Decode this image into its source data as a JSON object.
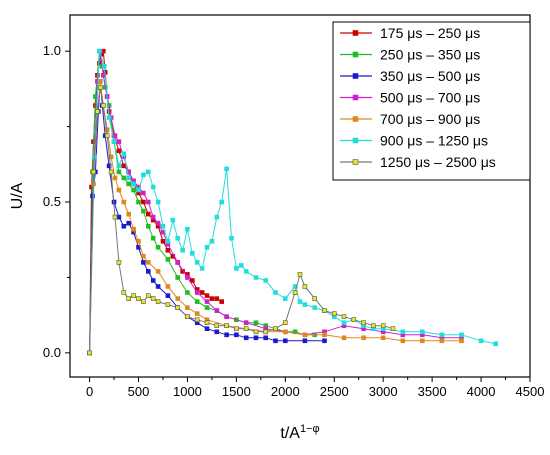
{
  "chart_data": {
    "type": "line",
    "title": "",
    "xlabel": "t/A",
    "xlabel_superscript": "1−φ",
    "ylabel": "U/A",
    "xlim": [
      -200,
      4500
    ],
    "ylim": [
      -0.08,
      1.12
    ],
    "xticks": [
      0,
      500,
      1000,
      1500,
      2000,
      2500,
      3000,
      3500,
      4000,
      4500
    ],
    "yticks": [
      0.0,
      0.5,
      1.0
    ],
    "ytick_labels": [
      "0.0",
      "0.5",
      "1.0"
    ],
    "grid": false,
    "legend_position": "top-right",
    "series": [
      {
        "name": "175 μs – 250 μs",
        "color": "#cc0000",
        "marker": "square",
        "points": [
          [
            0,
            0
          ],
          [
            20,
            0.55
          ],
          [
            40,
            0.7
          ],
          [
            60,
            0.82
          ],
          [
            80,
            0.92
          ],
          [
            100,
            0.96
          ],
          [
            120,
            0.99
          ],
          [
            140,
            1.0
          ],
          [
            160,
            0.93
          ],
          [
            180,
            0.85
          ],
          [
            200,
            0.8
          ],
          [
            250,
            0.72
          ],
          [
            300,
            0.67
          ],
          [
            350,
            0.62
          ],
          [
            400,
            0.6
          ],
          [
            450,
            0.56
          ],
          [
            500,
            0.53
          ],
          [
            550,
            0.5
          ],
          [
            600,
            0.46
          ],
          [
            650,
            0.44
          ],
          [
            700,
            0.42
          ],
          [
            750,
            0.37
          ],
          [
            800,
            0.34
          ],
          [
            850,
            0.32
          ],
          [
            900,
            0.3
          ],
          [
            950,
            0.27
          ],
          [
            1000,
            0.26
          ],
          [
            1050,
            0.24
          ],
          [
            1100,
            0.21
          ],
          [
            1150,
            0.2
          ],
          [
            1200,
            0.19
          ],
          [
            1250,
            0.18
          ],
          [
            1300,
            0.18
          ],
          [
            1350,
            0.17
          ]
        ]
      },
      {
        "name": "250 μs – 350 μs",
        "color": "#22bb22",
        "marker": "square",
        "points": [
          [
            0,
            0
          ],
          [
            30,
            0.6
          ],
          [
            60,
            0.85
          ],
          [
            100,
            1.0
          ],
          [
            130,
            0.95
          ],
          [
            160,
            0.88
          ],
          [
            200,
            0.82
          ],
          [
            250,
            0.7
          ],
          [
            300,
            0.6
          ],
          [
            350,
            0.58
          ],
          [
            400,
            0.56
          ],
          [
            450,
            0.54
          ],
          [
            500,
            0.5
          ],
          [
            550,
            0.47
          ],
          [
            600,
            0.42
          ],
          [
            650,
            0.38
          ],
          [
            700,
            0.35
          ],
          [
            800,
            0.31
          ],
          [
            900,
            0.25
          ],
          [
            1000,
            0.2
          ],
          [
            1100,
            0.17
          ],
          [
            1200,
            0.15
          ],
          [
            1300,
            0.14
          ],
          [
            1400,
            0.12
          ],
          [
            1500,
            0.11
          ],
          [
            1600,
            0.1
          ],
          [
            1700,
            0.1
          ],
          [
            1800,
            0.09
          ],
          [
            1900,
            0.08
          ],
          [
            2000,
            0.07
          ],
          [
            2100,
            0.07
          ],
          [
            2200,
            0.06
          ],
          [
            2300,
            0.06
          ]
        ]
      },
      {
        "name": "350 μs – 500 μs",
        "color": "#1a1acc",
        "marker": "square",
        "points": [
          [
            0,
            0
          ],
          [
            30,
            0.52
          ],
          [
            60,
            0.6
          ],
          [
            90,
            0.8
          ],
          [
            110,
            0.9
          ],
          [
            130,
            0.82
          ],
          [
            160,
            0.72
          ],
          [
            200,
            0.62
          ],
          [
            250,
            0.5
          ],
          [
            300,
            0.45
          ],
          [
            350,
            0.42
          ],
          [
            400,
            0.43
          ],
          [
            450,
            0.4
          ],
          [
            500,
            0.35
          ],
          [
            550,
            0.3
          ],
          [
            600,
            0.27
          ],
          [
            650,
            0.24
          ],
          [
            700,
            0.22
          ],
          [
            800,
            0.19
          ],
          [
            900,
            0.15
          ],
          [
            1000,
            0.12
          ],
          [
            1100,
            0.1
          ],
          [
            1200,
            0.08
          ],
          [
            1300,
            0.07
          ],
          [
            1400,
            0.06
          ],
          [
            1500,
            0.06
          ],
          [
            1600,
            0.05
          ],
          [
            1700,
            0.05
          ],
          [
            1800,
            0.05
          ],
          [
            1900,
            0.04
          ],
          [
            2000,
            0.04
          ],
          [
            2200,
            0.04
          ],
          [
            2400,
            0.04
          ]
        ]
      },
      {
        "name": "500 μs – 700 μs",
        "color": "#cc22cc",
        "marker": "square",
        "points": [
          [
            0,
            0
          ],
          [
            40,
            0.6
          ],
          [
            80,
            0.9
          ],
          [
            110,
            1.0
          ],
          [
            140,
            0.92
          ],
          [
            180,
            0.85
          ],
          [
            220,
            0.78
          ],
          [
            260,
            0.72
          ],
          [
            300,
            0.7
          ],
          [
            350,
            0.65
          ],
          [
            400,
            0.6
          ],
          [
            450,
            0.57
          ],
          [
            500,
            0.55
          ],
          [
            550,
            0.53
          ],
          [
            600,
            0.5
          ],
          [
            650,
            0.45
          ],
          [
            700,
            0.43
          ],
          [
            750,
            0.4
          ],
          [
            800,
            0.36
          ],
          [
            900,
            0.3
          ],
          [
            1000,
            0.25
          ],
          [
            1100,
            0.2
          ],
          [
            1200,
            0.17
          ],
          [
            1300,
            0.14
          ],
          [
            1400,
            0.12
          ],
          [
            1600,
            0.1
          ],
          [
            1800,
            0.08
          ],
          [
            2000,
            0.07
          ],
          [
            2200,
            0.06
          ],
          [
            2400,
            0.07
          ],
          [
            2600,
            0.09
          ],
          [
            2800,
            0.08
          ],
          [
            3000,
            0.07
          ],
          [
            3200,
            0.06
          ],
          [
            3400,
            0.06
          ],
          [
            3600,
            0.05
          ],
          [
            3800,
            0.05
          ]
        ]
      },
      {
        "name": "700 μs – 900 μs",
        "color": "#e08820",
        "marker": "square",
        "points": [
          [
            0,
            0
          ],
          [
            40,
            0.56
          ],
          [
            80,
            0.8
          ],
          [
            110,
            0.9
          ],
          [
            140,
            0.82
          ],
          [
            180,
            0.74
          ],
          [
            220,
            0.65
          ],
          [
            260,
            0.58
          ],
          [
            300,
            0.54
          ],
          [
            350,
            0.5
          ],
          [
            400,
            0.46
          ],
          [
            450,
            0.41
          ],
          [
            500,
            0.37
          ],
          [
            550,
            0.32
          ],
          [
            600,
            0.3
          ],
          [
            700,
            0.27
          ],
          [
            800,
            0.22
          ],
          [
            900,
            0.18
          ],
          [
            1000,
            0.15
          ],
          [
            1100,
            0.13
          ],
          [
            1200,
            0.11
          ],
          [
            1400,
            0.09
          ],
          [
            1600,
            0.08
          ],
          [
            1800,
            0.07
          ],
          [
            2000,
            0.07
          ],
          [
            2200,
            0.06
          ],
          [
            2400,
            0.06
          ],
          [
            2600,
            0.05
          ],
          [
            2800,
            0.05
          ],
          [
            3000,
            0.05
          ],
          [
            3200,
            0.04
          ],
          [
            3400,
            0.04
          ],
          [
            3600,
            0.04
          ],
          [
            3800,
            0.04
          ]
        ]
      },
      {
        "name": "900 μs – 1250 μs",
        "color": "#22dddd",
        "marker": "square",
        "points": [
          [
            0,
            0
          ],
          [
            50,
            0.65
          ],
          [
            100,
            1.0
          ],
          [
            150,
            0.95
          ],
          [
            200,
            0.78
          ],
          [
            250,
            0.7
          ],
          [
            300,
            0.62
          ],
          [
            350,
            0.66
          ],
          [
            400,
            0.58
          ],
          [
            450,
            0.56
          ],
          [
            500,
            0.54
          ],
          [
            550,
            0.59
          ],
          [
            600,
            0.6
          ],
          [
            650,
            0.55
          ],
          [
            700,
            0.5
          ],
          [
            750,
            0.42
          ],
          [
            800,
            0.37
          ],
          [
            850,
            0.44
          ],
          [
            900,
            0.38
          ],
          [
            950,
            0.34
          ],
          [
            1000,
            0.41
          ],
          [
            1050,
            0.33
          ],
          [
            1100,
            0.3
          ],
          [
            1150,
            0.28
          ],
          [
            1200,
            0.35
          ],
          [
            1250,
            0.37
          ],
          [
            1300,
            0.45
          ],
          [
            1350,
            0.5
          ],
          [
            1400,
            0.61
          ],
          [
            1450,
            0.38
          ],
          [
            1500,
            0.28
          ],
          [
            1550,
            0.29
          ],
          [
            1600,
            0.27
          ],
          [
            1700,
            0.25
          ],
          [
            1800,
            0.24
          ],
          [
            1900,
            0.2
          ],
          [
            2000,
            0.18
          ],
          [
            2100,
            0.22
          ],
          [
            2150,
            0.17
          ],
          [
            2200,
            0.16
          ],
          [
            2300,
            0.15
          ],
          [
            2400,
            0.14
          ],
          [
            2500,
            0.12
          ],
          [
            2600,
            0.1
          ],
          [
            2700,
            0.11
          ],
          [
            2800,
            0.09
          ],
          [
            2900,
            0.08
          ],
          [
            3000,
            0.08
          ],
          [
            3200,
            0.07
          ],
          [
            3400,
            0.07
          ],
          [
            3600,
            0.06
          ],
          [
            3800,
            0.06
          ],
          [
            4000,
            0.04
          ],
          [
            4150,
            0.03
          ]
        ]
      },
      {
        "name": "1250 μs – 2500 μs",
        "color": "#777777",
        "marker_fill": "#e6e620",
        "marker": "square",
        "points": [
          [
            0,
            0
          ],
          [
            40,
            0.6
          ],
          [
            80,
            0.8
          ],
          [
            110,
            0.88
          ],
          [
            140,
            0.82
          ],
          [
            180,
            0.72
          ],
          [
            220,
            0.6
          ],
          [
            260,
            0.45
          ],
          [
            300,
            0.3
          ],
          [
            350,
            0.2
          ],
          [
            400,
            0.18
          ],
          [
            450,
            0.19
          ],
          [
            500,
            0.18
          ],
          [
            550,
            0.17
          ],
          [
            600,
            0.19
          ],
          [
            650,
            0.18
          ],
          [
            700,
            0.17
          ],
          [
            800,
            0.16
          ],
          [
            900,
            0.15
          ],
          [
            1000,
            0.12
          ],
          [
            1100,
            0.11
          ],
          [
            1200,
            0.1
          ],
          [
            1300,
            0.09
          ],
          [
            1400,
            0.09
          ],
          [
            1500,
            0.08
          ],
          [
            1600,
            0.08
          ],
          [
            1700,
            0.07
          ],
          [
            1800,
            0.07
          ],
          [
            1900,
            0.08
          ],
          [
            2000,
            0.1
          ],
          [
            2100,
            0.2
          ],
          [
            2150,
            0.26
          ],
          [
            2200,
            0.22
          ],
          [
            2300,
            0.18
          ],
          [
            2400,
            0.14
          ],
          [
            2500,
            0.13
          ],
          [
            2600,
            0.12
          ],
          [
            2700,
            0.11
          ],
          [
            2800,
            0.1
          ],
          [
            2900,
            0.09
          ],
          [
            3000,
            0.09
          ],
          [
            3100,
            0.08
          ]
        ]
      }
    ]
  }
}
